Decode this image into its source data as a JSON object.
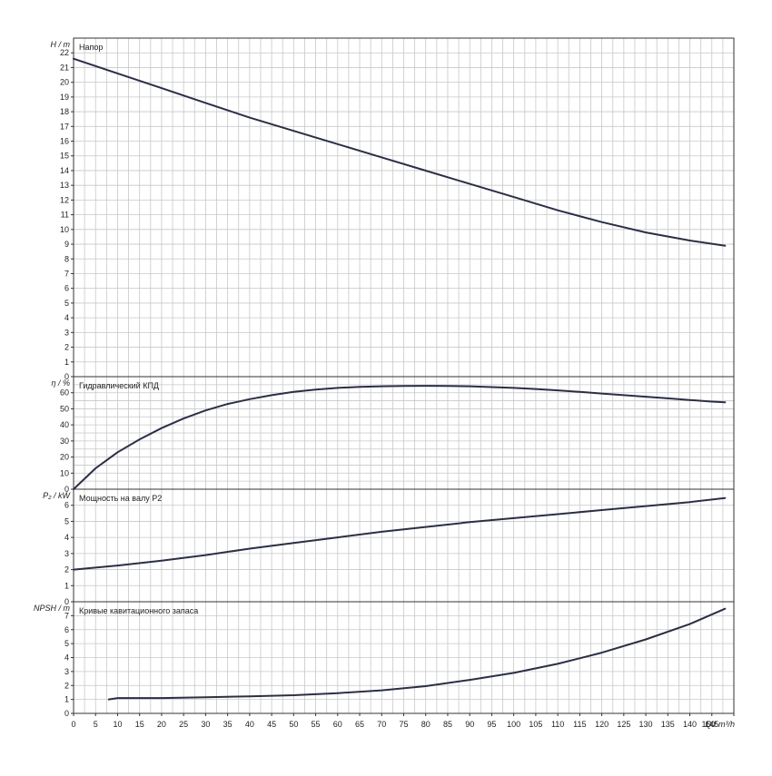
{
  "colors": {
    "background": "#ffffff",
    "grid": "#c8c8c8",
    "frame": "#333333",
    "curve": "#2b2f45",
    "text": "#222222"
  },
  "x_axis": {
    "label": "Q / m³/h",
    "range": [
      0,
      150
    ],
    "ticks": [
      0,
      5,
      10,
      15,
      20,
      25,
      30,
      35,
      40,
      45,
      50,
      55,
      60,
      65,
      70,
      75,
      80,
      85,
      90,
      95,
      100,
      105,
      110,
      115,
      120,
      125,
      130,
      135,
      140,
      145,
      150
    ]
  },
  "chart_data": [
    {
      "type": "line",
      "title": "Напор",
      "ylabel": "H / m",
      "ylim": [
        0,
        23
      ],
      "yticks": [
        0,
        1,
        2,
        3,
        4,
        5,
        6,
        7,
        8,
        9,
        10,
        11,
        12,
        13,
        14,
        15,
        16,
        17,
        18,
        19,
        20,
        21,
        22
      ],
      "grid": true,
      "series": [
        {
          "x": [
            0,
            10,
            20,
            30,
            40,
            50,
            60,
            70,
            80,
            90,
            100,
            110,
            120,
            130,
            140,
            148
          ],
          "y": [
            21.6,
            20.6,
            19.6,
            18.6,
            17.6,
            16.7,
            15.8,
            14.9,
            14.0,
            13.1,
            12.2,
            11.3,
            10.5,
            9.8,
            9.25,
            8.9
          ]
        }
      ]
    },
    {
      "type": "line",
      "title": "Гидравлический КПД",
      "ylabel": "η / %",
      "ylim": [
        0,
        70
      ],
      "yticks": [
        0,
        10,
        20,
        30,
        40,
        50,
        60
      ],
      "grid": true,
      "series": [
        {
          "x": [
            0,
            5,
            10,
            15,
            20,
            25,
            30,
            35,
            40,
            45,
            50,
            55,
            60,
            65,
            70,
            75,
            80,
            85,
            90,
            95,
            100,
            105,
            110,
            115,
            120,
            125,
            130,
            135,
            140,
            145,
            148
          ],
          "y": [
            0,
            13,
            23,
            31,
            38,
            44,
            49,
            53,
            56,
            58.5,
            60.5,
            62,
            63,
            63.6,
            64,
            64.2,
            64.3,
            64.2,
            64,
            63.5,
            63,
            62.3,
            61.5,
            60.5,
            59.5,
            58.5,
            57.5,
            56.5,
            55.5,
            54.5,
            54
          ]
        }
      ]
    },
    {
      "type": "line",
      "title": "Мощность на валу P2",
      "ylabel": "P₂ / kW",
      "ylim": [
        0,
        7
      ],
      "yticks": [
        0,
        1,
        2,
        3,
        4,
        5,
        6
      ],
      "grid": true,
      "series": [
        {
          "x": [
            0,
            10,
            20,
            30,
            40,
            50,
            60,
            70,
            80,
            90,
            100,
            110,
            120,
            130,
            140,
            148
          ],
          "y": [
            2.0,
            2.25,
            2.55,
            2.9,
            3.3,
            3.65,
            4.0,
            4.35,
            4.65,
            4.95,
            5.2,
            5.45,
            5.7,
            5.95,
            6.2,
            6.45
          ]
        }
      ]
    },
    {
      "type": "line",
      "title": "Кривые кавитационного запаса",
      "ylabel": "NPSH / m",
      "ylim": [
        0,
        8
      ],
      "yticks": [
        0,
        1,
        2,
        3,
        4,
        5,
        6,
        7
      ],
      "grid": true,
      "series": [
        {
          "x": [
            8,
            10,
            20,
            30,
            40,
            50,
            60,
            70,
            80,
            90,
            100,
            110,
            120,
            130,
            140,
            148
          ],
          "y": [
            1.0,
            1.1,
            1.1,
            1.15,
            1.22,
            1.3,
            1.45,
            1.65,
            1.95,
            2.4,
            2.9,
            3.55,
            4.35,
            5.3,
            6.4,
            7.5
          ]
        }
      ]
    }
  ]
}
